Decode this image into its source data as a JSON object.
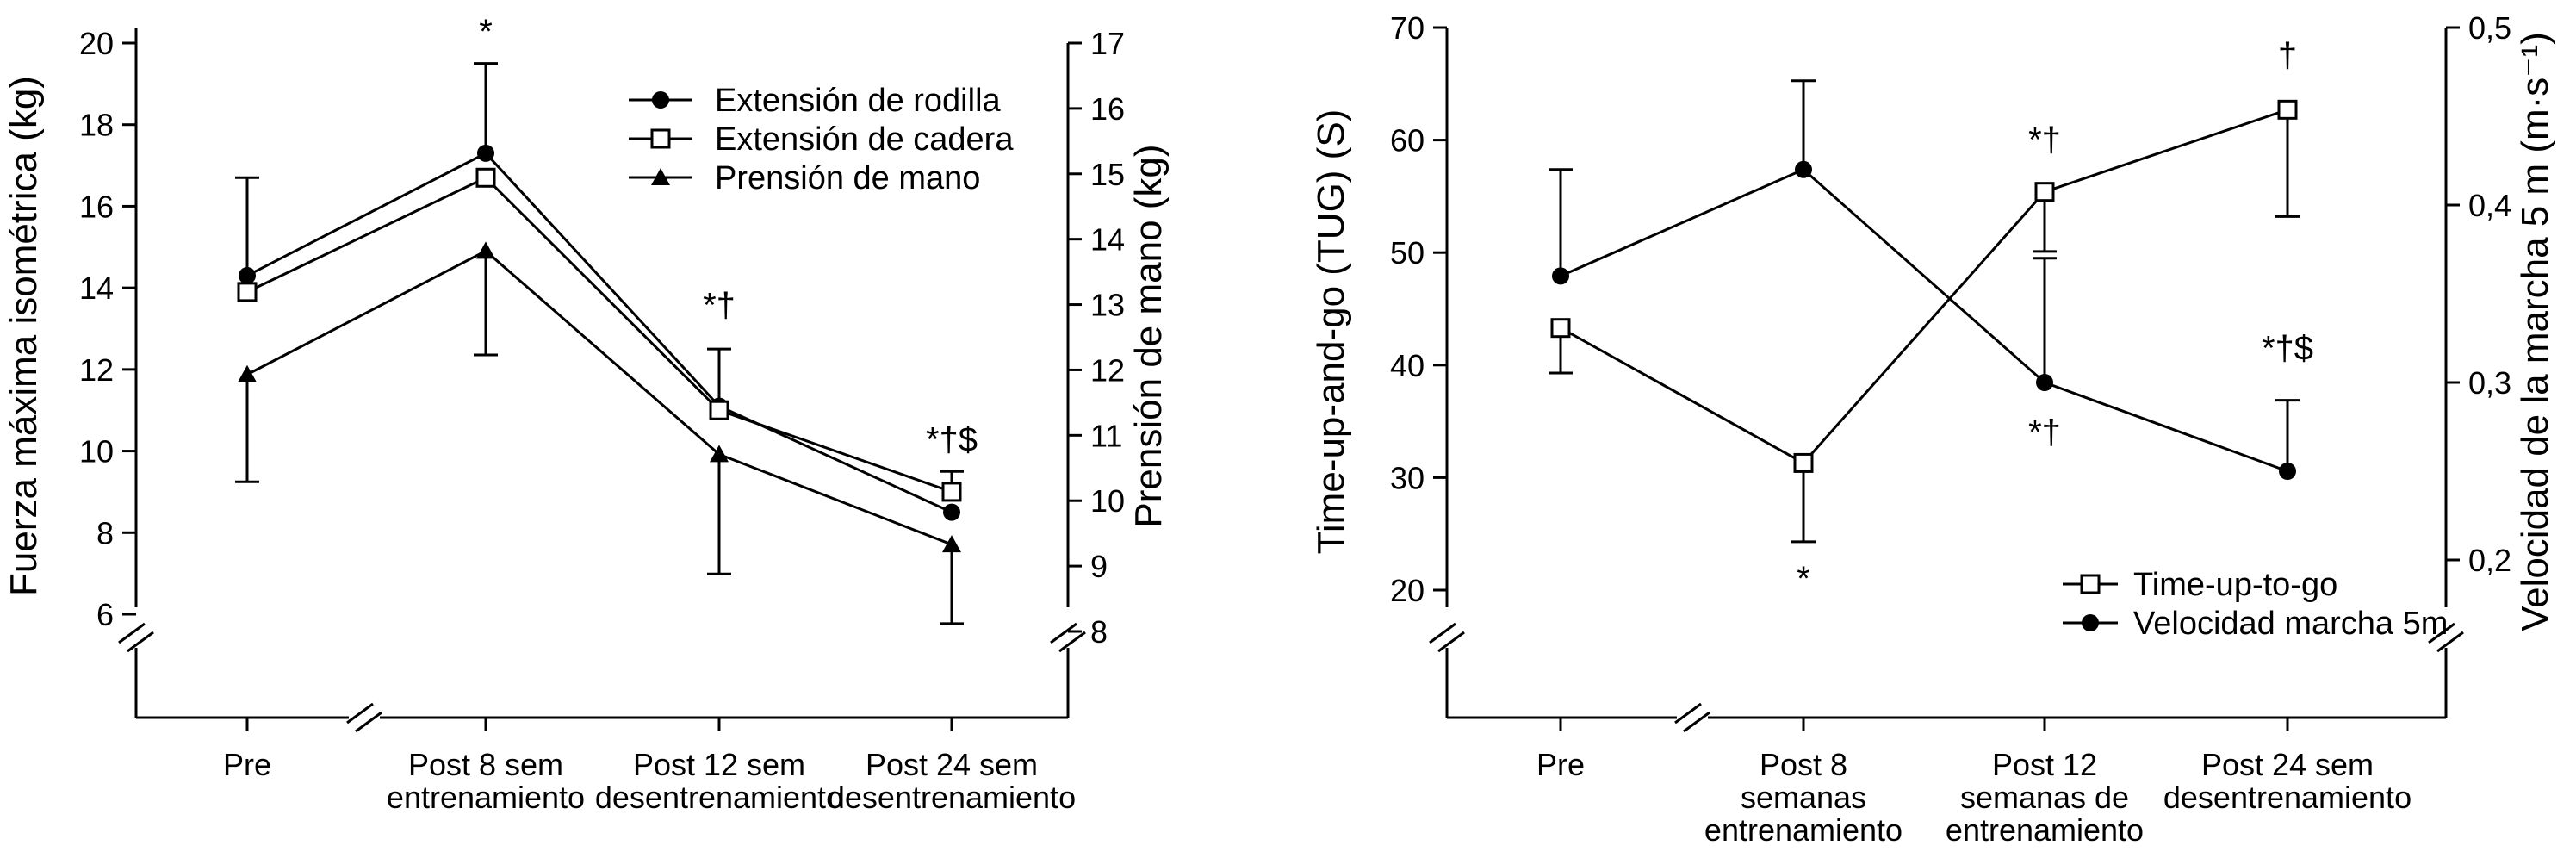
{
  "chart_data": [
    {
      "type": "line",
      "xlabel": "",
      "ylabel": "Fuerza máxima isométrica (kg)",
      "y2label": "Prensión de mano (kg)",
      "ylim": [
        5,
        20
      ],
      "y2lim": [
        7.33,
        17
      ],
      "yticks": [
        6,
        8,
        10,
        12,
        14,
        16,
        18,
        20
      ],
      "y2ticks": [
        8,
        9,
        10,
        11,
        12,
        13,
        14,
        15,
        16,
        17
      ],
      "categories": [
        [
          "Pre"
        ],
        [
          "Post 8 sem",
          "entrenamiento"
        ],
        [
          "Post 12 sem",
          "desentrenamiento"
        ],
        [
          "Post 24 sem",
          "desentrenamiento"
        ]
      ],
      "legend_position": "top-right",
      "series": [
        {
          "name": "Extensión de rodilla",
          "marker": "circle-filled",
          "axis": "left",
          "values": [
            14.3,
            17.3,
            11.1,
            8.5
          ],
          "error_upper": [
            16.7,
            19.5,
            12.5,
            null
          ],
          "error_lower": [
            null,
            null,
            null,
            null
          ]
        },
        {
          "name": "Extensión de cadera",
          "marker": "square-open",
          "axis": "left",
          "values": [
            13.9,
            16.7,
            11.0,
            9.0
          ],
          "error_upper": [
            null,
            null,
            null,
            9.5
          ],
          "error_lower": [
            null,
            null,
            null,
            null
          ]
        },
        {
          "name": "Prensión de mano",
          "marker": "triangle-filled",
          "axis": "right",
          "values": [
            11.93,
            13.82,
            10.71,
            9.33
          ],
          "error_upper": [
            null,
            null,
            null,
            null
          ],
          "error_lower": [
            10.29,
            12.23,
            8.88,
            8.12
          ]
        }
      ],
      "annotations": [
        {
          "text": "*",
          "category": 1,
          "y": 20.0
        },
        {
          "text": "*†",
          "category": 2,
          "y": 13.3
        },
        {
          "text": "*†$",
          "category": 3,
          "y": 10.0
        }
      ]
    },
    {
      "type": "line",
      "xlabel": "",
      "ylabel": "Time-up-and-go (TUG) (S)",
      "y2label": "Velocidad de la marcha 5 m (m·s⁻¹)",
      "ylim": [
        14,
        70
      ],
      "y2lim": [
        0.13,
        0.5
      ],
      "yticks": [
        20,
        30,
        40,
        50,
        60,
        70
      ],
      "y2ticks": [
        0.2,
        0.3,
        0.4,
        0.5
      ],
      "y2ticklabels": [
        "0,2",
        "0,3",
        "0,4",
        "0,5"
      ],
      "categories": [
        [
          "Pre"
        ],
        [
          "Post 8",
          "semanas",
          "entrenamiento"
        ],
        [
          "Post 12",
          "semanas de",
          "entrenamiento"
        ],
        [
          "Post 24 sem",
          "desentrenamiento"
        ]
      ],
      "legend_position": "bottom-right",
      "series": [
        {
          "name": "Time-up-to-go",
          "marker": "square-open",
          "axis": "left",
          "values": [
            43.3,
            31.3,
            55.4,
            62.7
          ],
          "error_upper": [
            null,
            null,
            null,
            null
          ],
          "error_lower": [
            39.3,
            24.3,
            50.1,
            53.2
          ]
        },
        {
          "name": "Velocidad marcha 5m",
          "marker": "circle-filled",
          "axis": "right",
          "values": [
            0.36,
            0.42,
            0.3,
            0.25
          ],
          "error_upper": [
            0.42,
            0.47,
            0.37,
            0.29
          ],
          "error_lower": [
            null,
            null,
            null,
            null
          ]
        }
      ],
      "annotations": [
        {
          "text": "*",
          "category": 1,
          "y": 20.0
        },
        {
          "text": "*†",
          "category": 2,
          "y": 59.0
        },
        {
          "text": "†",
          "category": 3,
          "y": 66.5
        },
        {
          "text": "*†",
          "category": 2,
          "y": 33.0
        },
        {
          "text": "*†$",
          "category": 3,
          "y": 40.5
        }
      ]
    }
  ]
}
